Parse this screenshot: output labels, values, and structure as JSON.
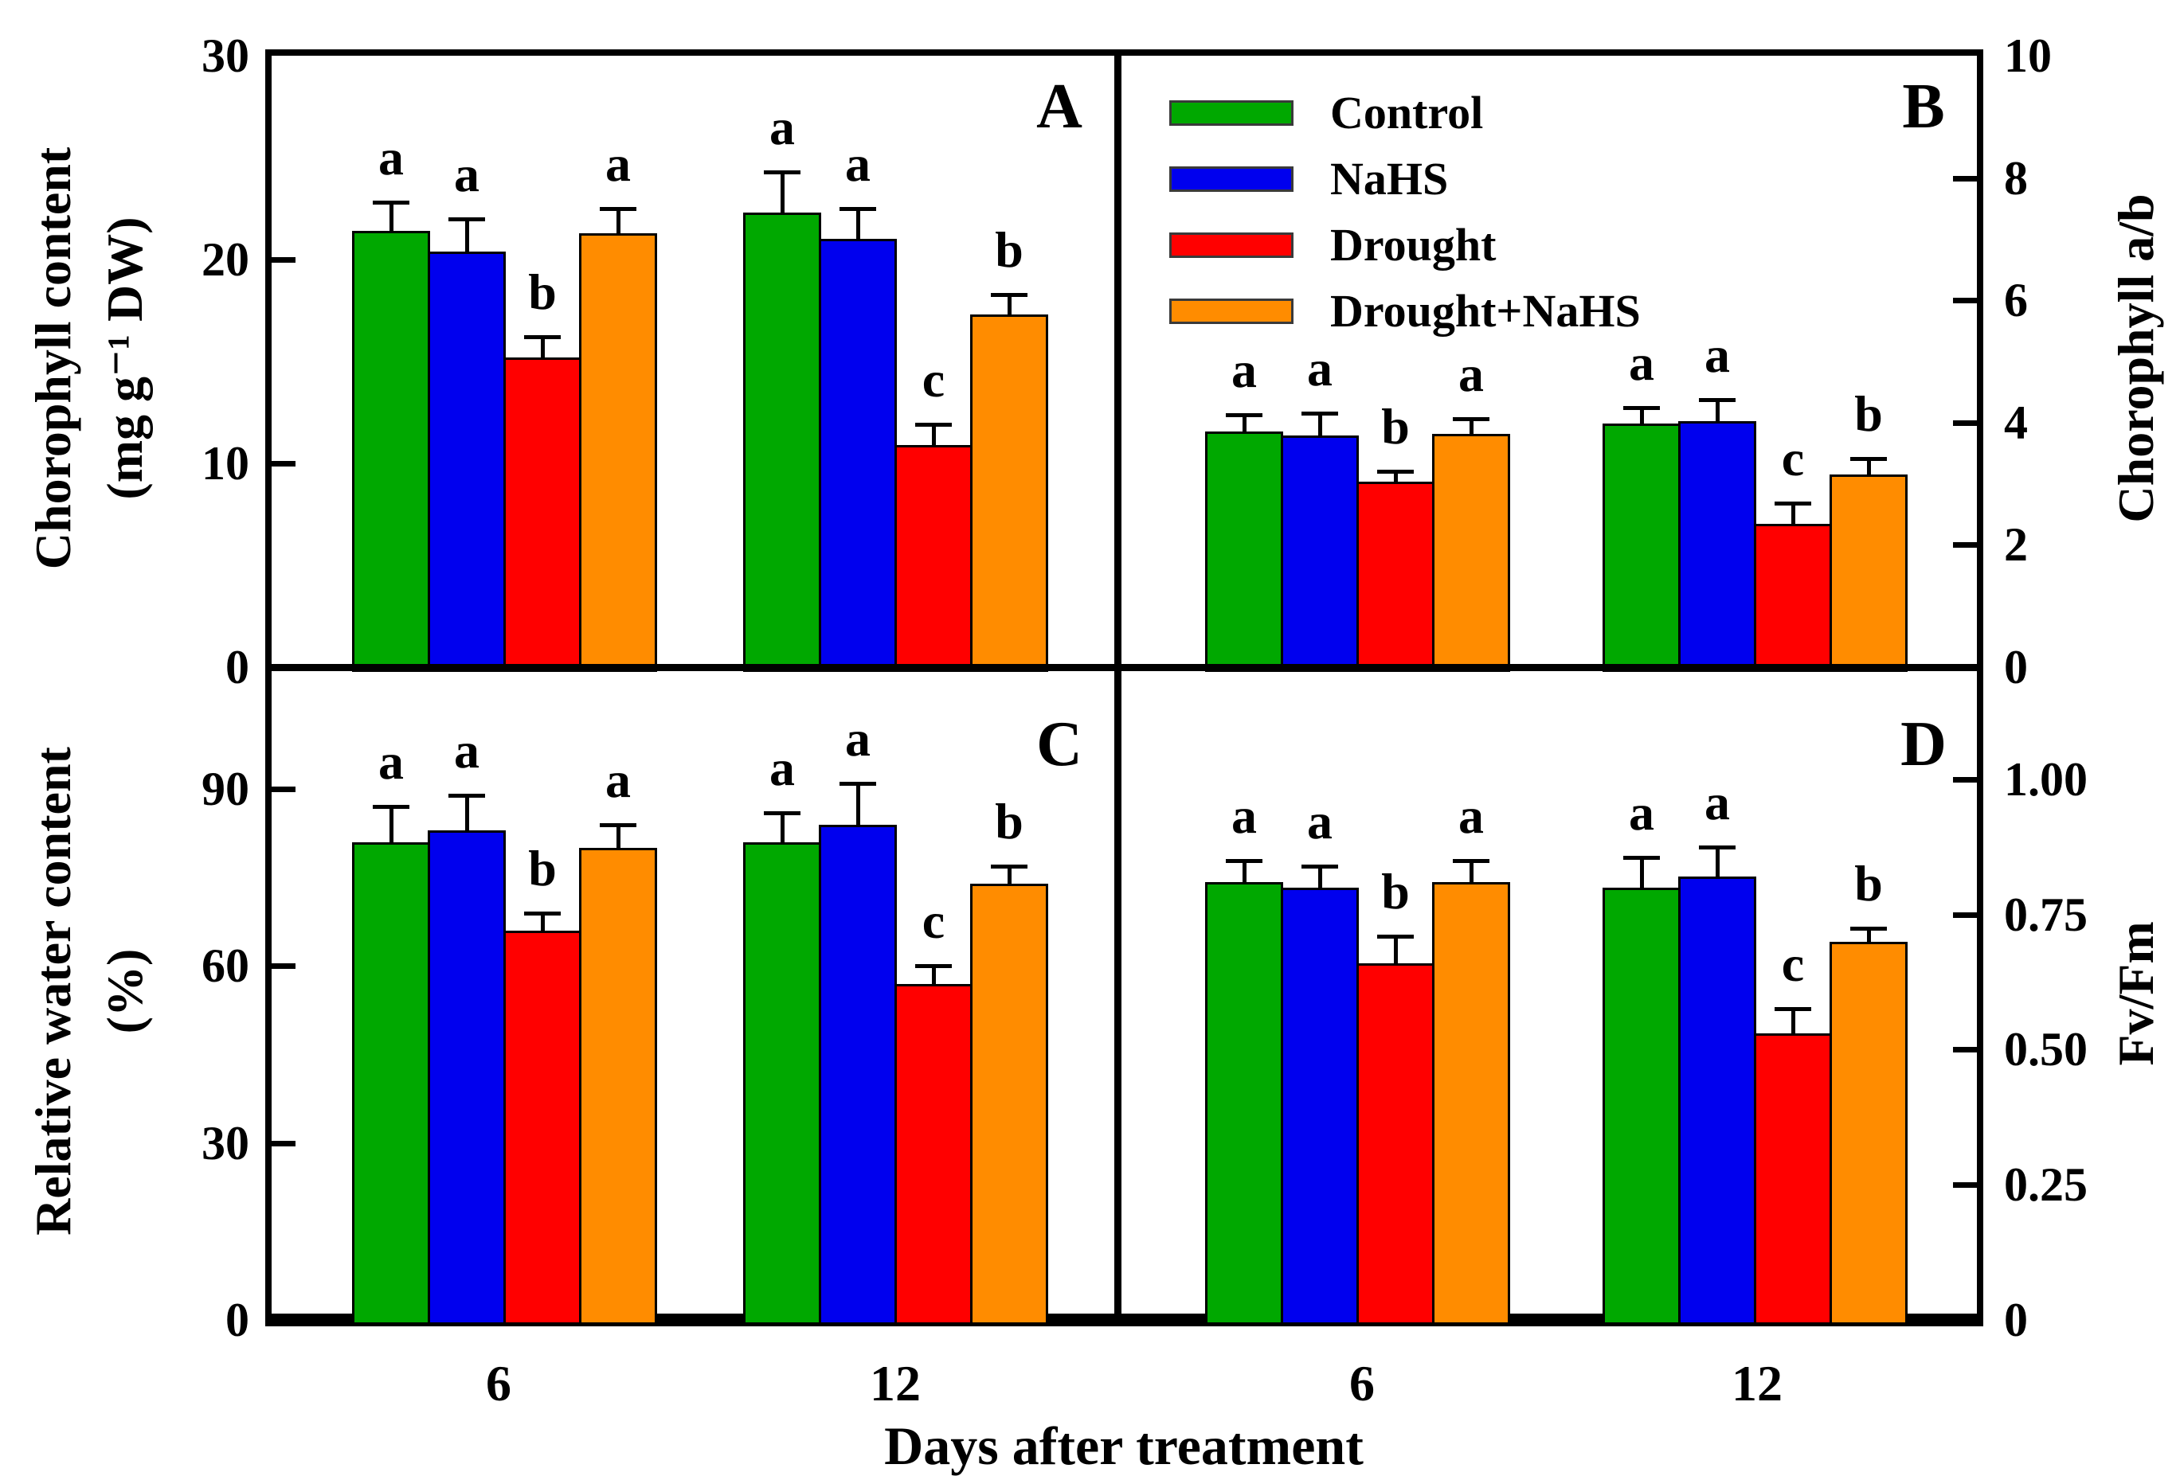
{
  "colors": {
    "control": "#00A800",
    "nahs": "#0000EE",
    "drought": "#FF0000",
    "drought_nahs": "#FF8C00",
    "axis": "#000000",
    "background": "#FFFFFF"
  },
  "legend": {
    "items": [
      {
        "label": "Control",
        "color_key": "control"
      },
      {
        "label": "NaHS",
        "color_key": "nahs"
      },
      {
        "label": "Drought",
        "color_key": "drought"
      },
      {
        "label": "Drought+NaHS",
        "color_key": "drought_nahs"
      }
    ]
  },
  "x_axis": {
    "title": "Days after treatment",
    "tick_labels": [
      "6",
      "12"
    ]
  },
  "chart_data": [
    {
      "type": "bar",
      "panel": "A",
      "position": "top-left",
      "ylabel_lines": [
        "Chorophyll content",
        "(mg g⁻¹ DW)"
      ],
      "axis_side": "left",
      "ylim": [
        0,
        30
      ],
      "yticks": [
        {
          "v": 0,
          "label": "0"
        },
        {
          "v": 10,
          "label": "10"
        },
        {
          "v": 20,
          "label": "20"
        },
        {
          "v": 30,
          "label": "30"
        }
      ],
      "categories": [
        "6",
        "12"
      ],
      "series": [
        {
          "name": "Control",
          "color_key": "control",
          "values": [
            21.4,
            22.3
          ],
          "errors": [
            1.4,
            2.0
          ],
          "letters": [
            "a",
            "a"
          ]
        },
        {
          "name": "NaHS",
          "color_key": "nahs",
          "values": [
            20.4,
            21.0
          ],
          "errors": [
            1.6,
            1.5
          ],
          "letters": [
            "a",
            "a"
          ]
        },
        {
          "name": "Drought",
          "color_key": "drought",
          "values": [
            15.2,
            10.9
          ],
          "errors": [
            1.0,
            1.0
          ],
          "letters": [
            "b",
            "c"
          ]
        },
        {
          "name": "Drought+NaHS",
          "color_key": "drought_nahs",
          "values": [
            21.3,
            17.3
          ],
          "errors": [
            1.2,
            1.0
          ],
          "letters": [
            "a",
            "b"
          ]
        }
      ]
    },
    {
      "type": "bar",
      "panel": "B",
      "position": "top-right",
      "ylabel_lines": [
        "Chorophyll a/b"
      ],
      "axis_side": "right",
      "ylim": [
        0,
        10
      ],
      "yticks": [
        {
          "v": 0,
          "label": "0"
        },
        {
          "v": 2,
          "label": "2"
        },
        {
          "v": 4,
          "label": "4"
        },
        {
          "v": 6,
          "label": "6"
        },
        {
          "v": 8,
          "label": "8"
        },
        {
          "v": 10,
          "label": "10"
        }
      ],
      "categories": [
        "6",
        "12"
      ],
      "series": [
        {
          "name": "Control",
          "color_key": "control",
          "values": [
            3.85,
            3.98
          ],
          "errors": [
            0.28,
            0.26
          ],
          "letters": [
            "a",
            "a"
          ]
        },
        {
          "name": "NaHS",
          "color_key": "nahs",
          "values": [
            3.79,
            4.02
          ],
          "errors": [
            0.36,
            0.36
          ],
          "letters": [
            "a",
            "a"
          ]
        },
        {
          "name": "Drought",
          "color_key": "drought",
          "values": [
            3.04,
            2.34
          ],
          "errors": [
            0.16,
            0.34
          ],
          "letters": [
            "b",
            "c"
          ]
        },
        {
          "name": "Drought+NaHS",
          "color_key": "drought_nahs",
          "values": [
            3.81,
            3.15
          ],
          "errors": [
            0.25,
            0.26
          ],
          "letters": [
            "a",
            "b"
          ]
        }
      ]
    },
    {
      "type": "bar",
      "panel": "C",
      "position": "bottom-left",
      "ylabel_lines": [
        "Relative water content",
        "(%)"
      ],
      "axis_side": "left",
      "ylim": [
        0,
        110
      ],
      "yticks": [
        {
          "v": 0,
          "label": "0"
        },
        {
          "v": 30,
          "label": "30"
        },
        {
          "v": 60,
          "label": "60"
        },
        {
          "v": 90,
          "label": "90"
        }
      ],
      "categories": [
        "6",
        "12"
      ],
      "series": [
        {
          "name": "Control",
          "color_key": "control",
          "values": [
            81,
            81
          ],
          "errors": [
            6,
            5
          ],
          "letters": [
            "a",
            "a"
          ]
        },
        {
          "name": "NaHS",
          "color_key": "nahs",
          "values": [
            83,
            84
          ],
          "errors": [
            6,
            7
          ],
          "letters": [
            "a",
            "a"
          ]
        },
        {
          "name": "Drought",
          "color_key": "drought",
          "values": [
            66,
            57
          ],
          "errors": [
            3,
            3
          ],
          "letters": [
            "b",
            "c"
          ]
        },
        {
          "name": "Drought+NaHS",
          "color_key": "drought_nahs",
          "values": [
            80,
            74
          ],
          "errors": [
            4,
            3
          ],
          "letters": [
            "a",
            "b"
          ]
        }
      ]
    },
    {
      "type": "bar",
      "panel": "D",
      "position": "bottom-right",
      "ylabel_lines": [
        "Fv/Fm"
      ],
      "axis_side": "right",
      "ylim": [
        0,
        1.2
      ],
      "yticks": [
        {
          "v": 0,
          "label": "0"
        },
        {
          "v": 0.25,
          "label": "0.25"
        },
        {
          "v": 0.5,
          "label": "0.50"
        },
        {
          "v": 0.75,
          "label": "0.75"
        },
        {
          "v": 1.0,
          "label": "1.00"
        }
      ],
      "categories": [
        "6",
        "12"
      ],
      "series": [
        {
          "name": "Control",
          "color_key": "control",
          "values": [
            0.81,
            0.8
          ],
          "errors": [
            0.04,
            0.055
          ],
          "letters": [
            "a",
            "a"
          ]
        },
        {
          "name": "NaHS",
          "color_key": "nahs",
          "values": [
            0.8,
            0.82
          ],
          "errors": [
            0.04,
            0.055
          ],
          "letters": [
            "a",
            "a"
          ]
        },
        {
          "name": "Drought",
          "color_key": "drought",
          "values": [
            0.66,
            0.53
          ],
          "errors": [
            0.05,
            0.045
          ],
          "letters": [
            "b",
            "c"
          ]
        },
        {
          "name": "Drought+NaHS",
          "color_key": "drought_nahs",
          "values": [
            0.81,
            0.7
          ],
          "errors": [
            0.04,
            0.025
          ],
          "letters": [
            "a",
            "b"
          ]
        }
      ]
    }
  ]
}
